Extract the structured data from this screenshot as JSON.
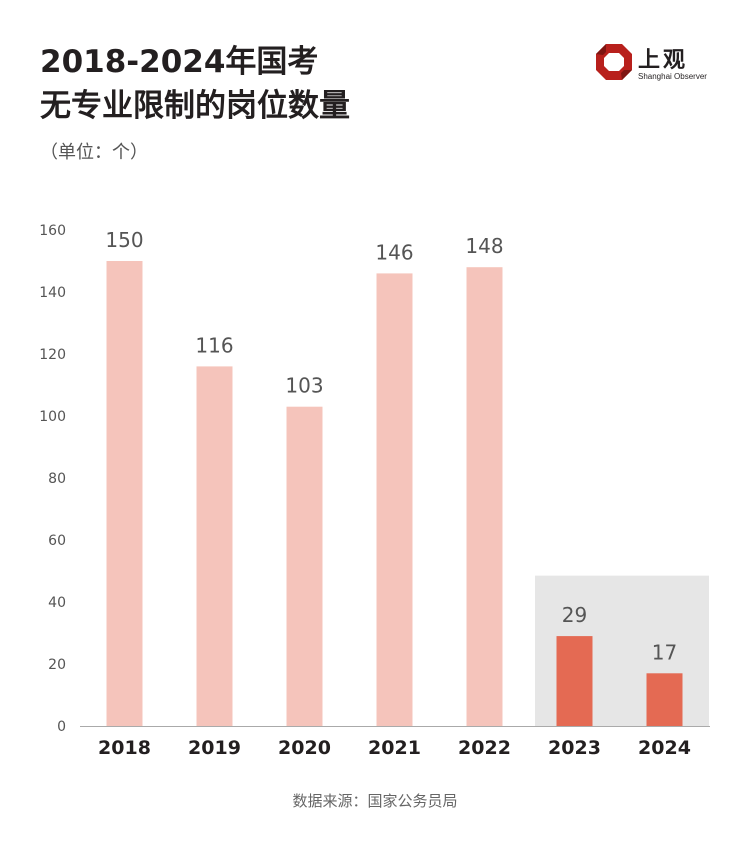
{
  "header": {
    "title_line1": "2018-2024年国考",
    "title_line2": "无专业限制的岗位数量",
    "unit": "（单位：个）"
  },
  "logo": {
    "name_cn": "上观",
    "name_en": "Shanghai Observer"
  },
  "source": "数据来源：国家公务员局",
  "chart_data": {
    "type": "bar",
    "categories": [
      "2018",
      "2019",
      "2020",
      "2021",
      "2022",
      "2023",
      "2024"
    ],
    "values": [
      150,
      116,
      103,
      146,
      148,
      29,
      17
    ],
    "highlight_categories": [
      "2023",
      "2024"
    ],
    "ylim": [
      0,
      160
    ],
    "yticks": [
      0,
      20,
      40,
      60,
      80,
      100,
      120,
      140,
      160
    ],
    "title": "2018-2024年国考无专业限制的岗位数量",
    "ylabel": "（单位：个）",
    "xlabel": "",
    "colors": {
      "normal": "#f5c4bb",
      "highlight": "#e46a53",
      "highlight_bg": "#e6e6e6",
      "axis": "#aaaaaa"
    }
  }
}
